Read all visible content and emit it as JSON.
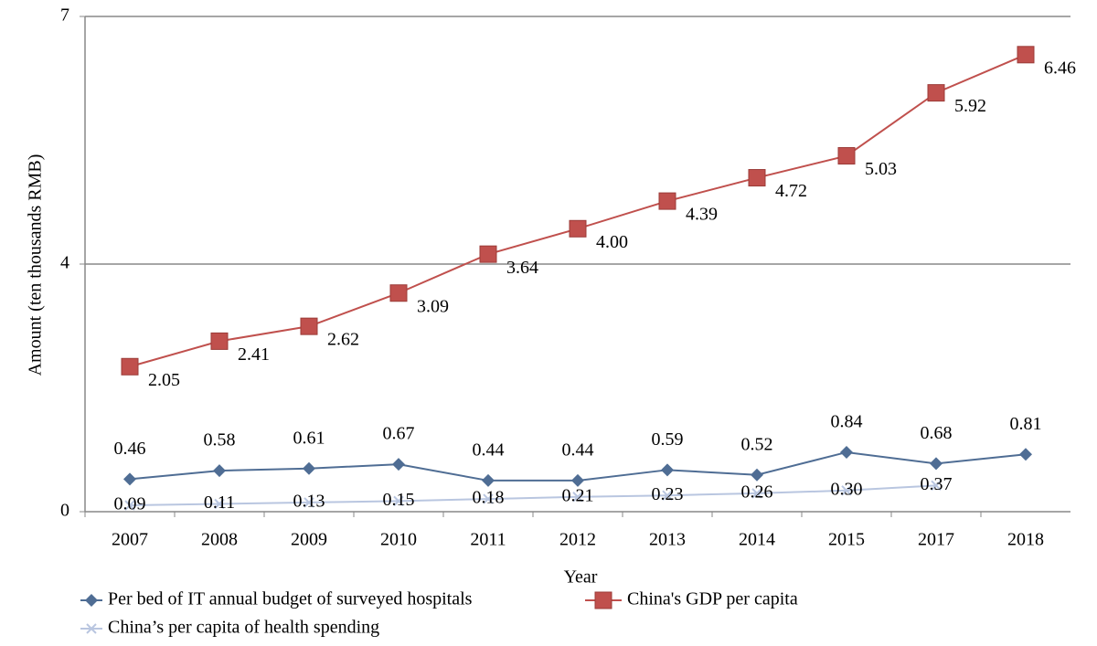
{
  "chart_data": {
    "type": "line",
    "xlabel": "Year",
    "ylabel": "Amount (ten thousands RMB)",
    "categories": [
      "2007",
      "2008",
      "2009",
      "2010",
      "2011",
      "2012",
      "2013",
      "2014",
      "2015",
      "2017",
      "2018"
    ],
    "ylim": [
      0,
      7
    ],
    "yticks": [
      0,
      {
        "value": 3.5,
        "label": "4"
      },
      7
    ],
    "grid": true,
    "legend": "bottom",
    "series": [
      {
        "name": "Per bed of IT annual budget of surveyed hospitals",
        "color": "#4f6d94",
        "marker": "diamond",
        "values": [
          0.46,
          0.58,
          0.61,
          0.67,
          0.44,
          0.44,
          0.59,
          0.52,
          0.84,
          0.68,
          0.81
        ],
        "value_labels": [
          "0.46",
          "0.58",
          "0.61",
          "0.67",
          "0.44",
          "0.44",
          "0.59",
          "0.52",
          "0.84",
          "0.68",
          "0.81"
        ]
      },
      {
        "name": "China's GDP per capita",
        "color": "#c0504d",
        "marker": "square",
        "values": [
          2.05,
          2.41,
          2.62,
          3.09,
          3.64,
          4.0,
          4.39,
          4.72,
          5.03,
          5.92,
          6.46
        ],
        "value_labels": [
          "2.05",
          "2.41",
          "2.62",
          "3.09",
          "3.64",
          "4.00",
          "4.39",
          "4.72",
          "5.03",
          "5.92",
          "6.46"
        ]
      },
      {
        "name": "China’s per capita of health spending",
        "color": "#b9c6e0",
        "marker": "x",
        "values": [
          0.09,
          0.11,
          0.13,
          0.15,
          0.18,
          0.21,
          0.23,
          0.26,
          0.3,
          0.37,
          null
        ],
        "value_labels": [
          "0.09",
          "0.11",
          "0.13",
          "0.15",
          "0.18",
          "0.21",
          "0.23",
          "0.26",
          "0.30",
          "0.37",
          null
        ]
      }
    ]
  }
}
